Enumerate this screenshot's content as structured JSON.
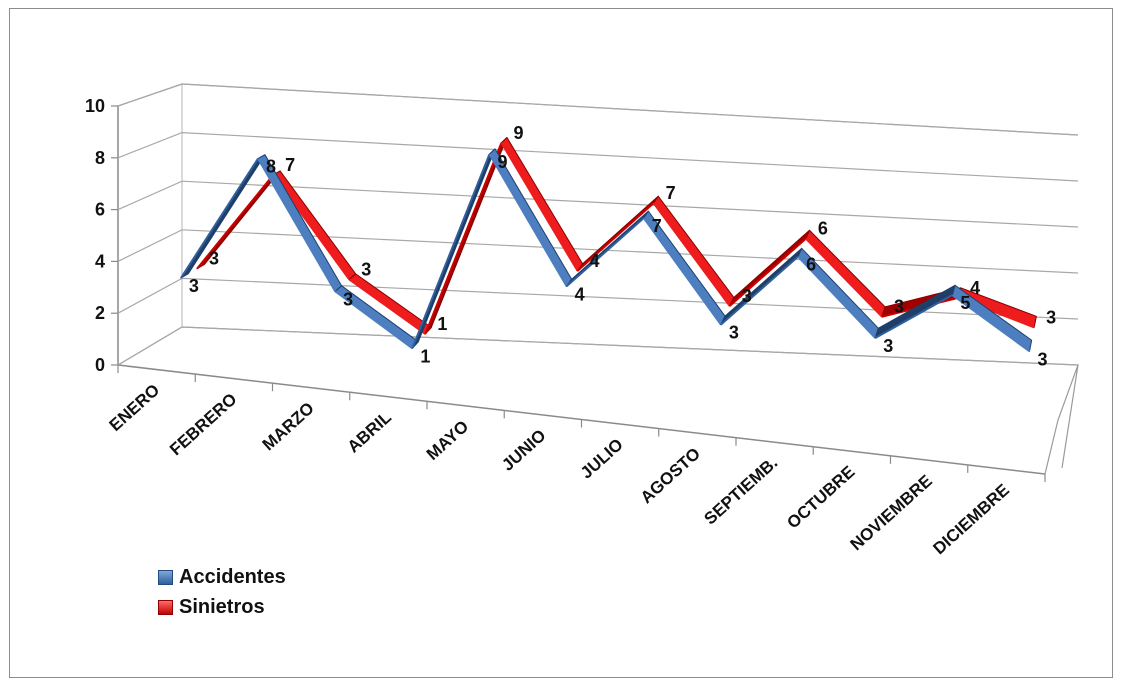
{
  "chart_data": {
    "type": "line",
    "style": "3d-ribbon",
    "categories": [
      "ENERO",
      "FEBRERO",
      "MARZO",
      "ABRIL",
      "MAYO",
      "JUNIO",
      "JULIO",
      "AGOSTO",
      "SEPTIEMB.",
      "OCTUBRE",
      "NOVIEMBRE",
      "DICIEMBRE"
    ],
    "series": [
      {
        "name": "Accidentes",
        "color": "#3f6fae",
        "values": [
          3,
          8,
          3,
          1,
          9,
          4,
          7,
          3,
          6,
          3,
          5,
          3
        ]
      },
      {
        "name": "Sinietros",
        "color": "#e01212",
        "values": [
          3,
          7,
          3,
          1,
          9,
          4,
          7,
          3,
          6,
          3,
          4,
          3
        ]
      }
    ],
    "ylim": [
      0,
      10
    ],
    "yticks": [
      "0",
      "2",
      "4",
      "6",
      "8",
      "10"
    ],
    "grid": true,
    "legend_position": "bottom-left"
  }
}
